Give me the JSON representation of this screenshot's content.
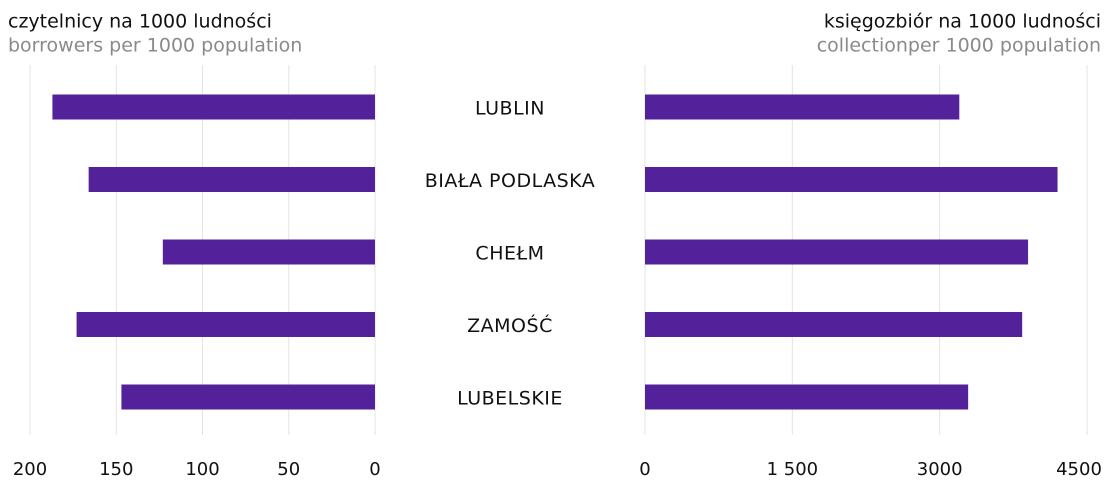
{
  "chart_data": {
    "type": "butterfly",
    "categories": [
      "LUBLIN",
      "BIAŁA PODLASKA",
      "CHEŁM",
      "ZAMOŚĆ",
      "LUBELSKIE"
    ],
    "left": {
      "title": "czytelnicy na 1000 ludności",
      "subtitle": "borrowers per 1000 population",
      "values": [
        187,
        166,
        123,
        173,
        147
      ],
      "color": "#53229b",
      "xlim": [
        0,
        200
      ],
      "xticks": [
        200,
        150,
        100,
        50,
        0
      ],
      "grid": true
    },
    "right": {
      "title": "księgozbiór na 1000 ludności",
      "subtitle": "collectionper 1000 population",
      "values": [
        3200,
        4200,
        3900,
        3840,
        3290
      ],
      "color": "#53229b",
      "xlim": [
        0,
        4500
      ],
      "xticks": [
        0,
        {
          "value": 1500,
          "label": "1 500"
        },
        3000,
        4500
      ],
      "grid": true
    }
  }
}
